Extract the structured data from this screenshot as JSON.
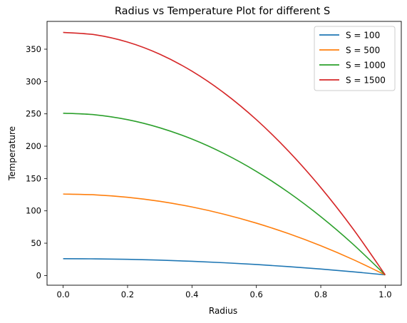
{
  "chart_data": {
    "type": "line",
    "title": "Radius vs Temperature  Plot for different S",
    "xlabel": "Radius",
    "ylabel": "Temperature",
    "xlim": [
      -0.05,
      1.05
    ],
    "ylim": [
      -15,
      393
    ],
    "xticks": [
      0.0,
      0.2,
      0.4,
      0.6,
      0.8,
      1.0
    ],
    "xtick_labels": [
      "0.0",
      "0.2",
      "0.4",
      "0.6",
      "0.8",
      "1.0"
    ],
    "yticks": [
      0,
      50,
      100,
      150,
      200,
      250,
      300,
      350
    ],
    "ytick_labels": [
      "0",
      "50",
      "100",
      "150",
      "200",
      "250",
      "300",
      "350"
    ],
    "grid": false,
    "legend_position": "top-right",
    "x": [
      0.0,
      0.1,
      0.2,
      0.3,
      0.4,
      0.5,
      0.6,
      0.7,
      0.8,
      0.9,
      1.0
    ],
    "series": [
      {
        "name": "S = 100",
        "color": "#1f77b4",
        "values": [
          26,
          25.75,
          25,
          23.75,
          22,
          19.75,
          17,
          13.75,
          10,
          5.75,
          1
        ]
      },
      {
        "name": "S = 500",
        "color": "#ff7f0e",
        "values": [
          126,
          124.75,
          121,
          114.75,
          106,
          94.75,
          81,
          64.75,
          46,
          24.75,
          1
        ]
      },
      {
        "name": "S = 1000",
        "color": "#2ca02c",
        "values": [
          251,
          248.5,
          241,
          228.5,
          211,
          188.5,
          161,
          128.5,
          91,
          48.5,
          1
        ]
      },
      {
        "name": "S = 1500",
        "color": "#d62728",
        "values": [
          376,
          372.25,
          361,
          342.25,
          316,
          282.25,
          241,
          192.25,
          136,
          72.25,
          1
        ]
      }
    ]
  }
}
